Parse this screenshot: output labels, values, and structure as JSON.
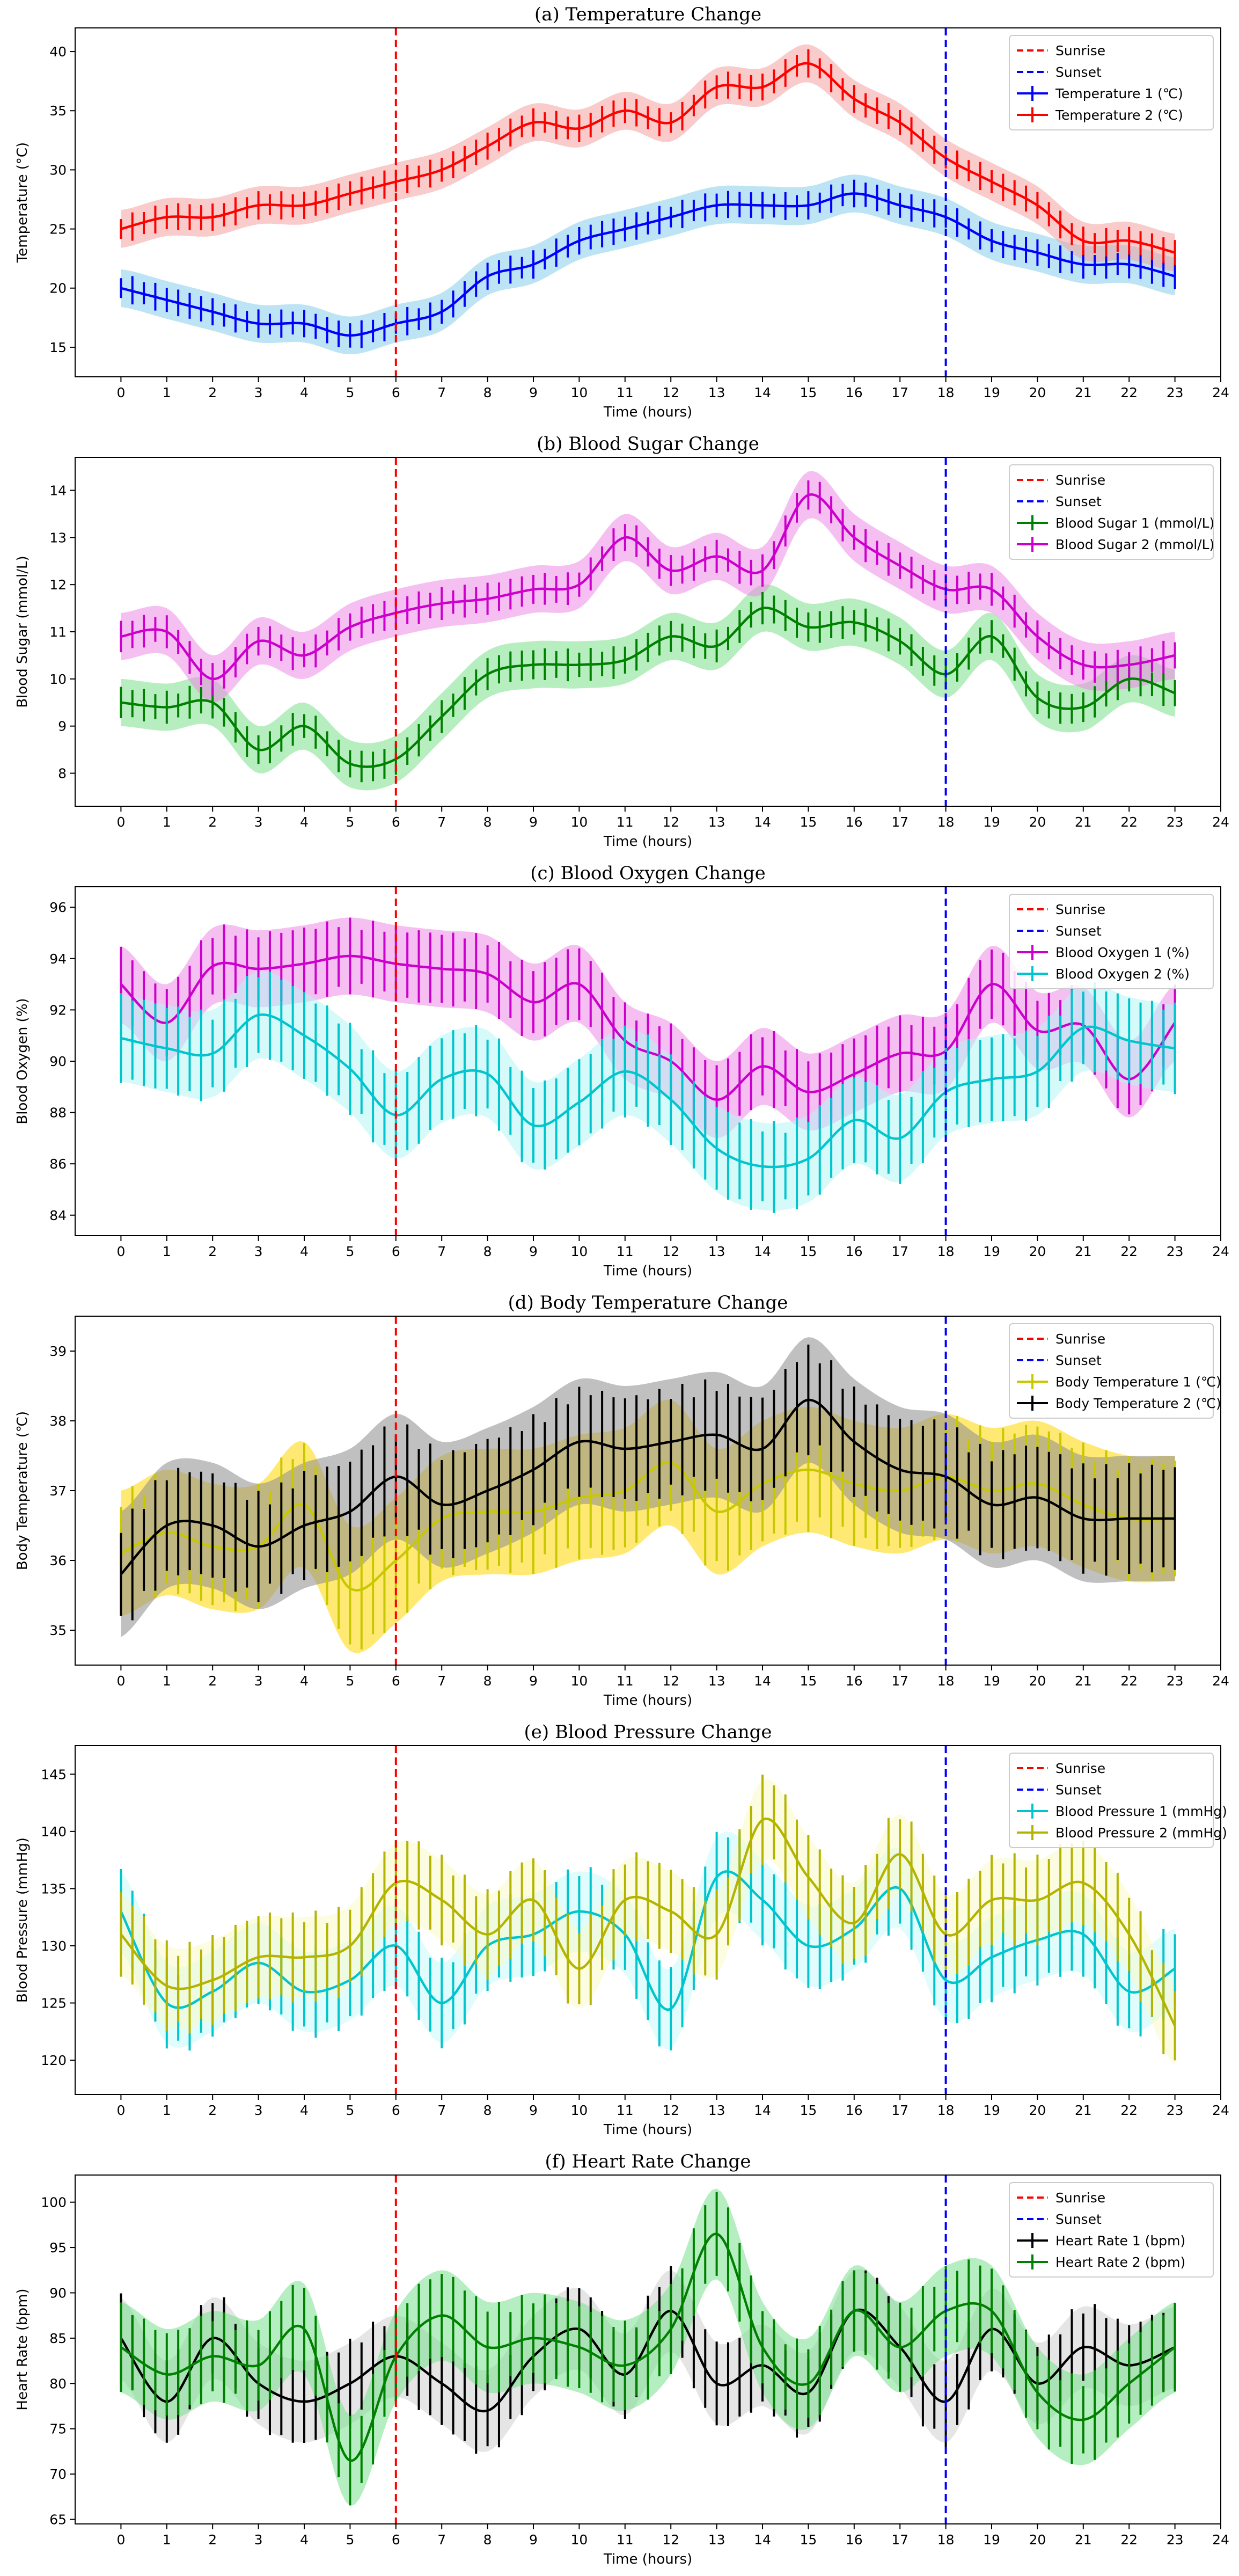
{
  "chart_data": [
    {
      "type": "line",
      "title": "(a) Temperature Change",
      "xlabel": "Time (hours)",
      "ylabel": "Temperature (°C)",
      "xlim": [
        -1,
        24
      ],
      "ylim": [
        12.5,
        42
      ],
      "xticks": [
        0,
        1,
        2,
        3,
        4,
        5,
        6,
        7,
        8,
        9,
        10,
        11,
        12,
        13,
        14,
        15,
        16,
        17,
        18,
        19,
        20,
        21,
        22,
        23,
        24
      ],
      "yticks": [
        15,
        20,
        25,
        30,
        35,
        40
      ],
      "legend_position": "top-right",
      "vlines": [
        {
          "name": "Sunrise",
          "x": 6,
          "color": "#ff0000"
        },
        {
          "name": "Sunset",
          "x": 18,
          "color": "#0000ff"
        }
      ],
      "series": [
        {
          "name": "Temperature 1 (℃)",
          "color": "#0000ff",
          "fill": "#87ceeb",
          "x": [
            0,
            1,
            2,
            3,
            4,
            5,
            6,
            7,
            8,
            9,
            10,
            11,
            12,
            13,
            14,
            15,
            16,
            17,
            18,
            19,
            20,
            21,
            22,
            23
          ],
          "values": [
            20,
            19,
            18,
            17,
            17,
            16,
            17,
            18,
            21,
            22,
            24,
            25,
            26,
            27,
            27,
            27,
            28,
            27,
            26,
            24,
            23,
            22,
            22,
            21
          ],
          "band": 1.6,
          "err": 1.2
        },
        {
          "name": "Temperature 2 (℃)",
          "color": "#ff0000",
          "fill": "#f4a0a0",
          "x": [
            0,
            1,
            2,
            3,
            4,
            5,
            6,
            7,
            8,
            9,
            10,
            11,
            12,
            13,
            14,
            15,
            16,
            17,
            18,
            19,
            20,
            21,
            22,
            23
          ],
          "values": [
            25,
            26,
            26,
            27,
            27,
            28,
            29,
            30,
            32,
            34,
            33.5,
            35,
            34,
            37,
            37,
            39,
            36,
            34,
            31,
            29,
            27,
            24,
            24,
            23
          ],
          "band": 1.6,
          "err": 1.2
        }
      ]
    },
    {
      "type": "line",
      "title": "(b) Blood Sugar Change",
      "xlabel": "Time (hours)",
      "ylabel": "Blood Sugar (mmol/L)",
      "xlim": [
        -1,
        24
      ],
      "ylim": [
        7.3,
        14.7
      ],
      "xticks": [
        0,
        1,
        2,
        3,
        4,
        5,
        6,
        7,
        8,
        9,
        10,
        11,
        12,
        13,
        14,
        15,
        16,
        17,
        18,
        19,
        20,
        21,
        22,
        23,
        24
      ],
      "yticks": [
        8,
        9,
        10,
        11,
        12,
        13,
        14
      ],
      "legend_position": "top-right",
      "vlines": [
        {
          "name": "Sunrise",
          "x": 6,
          "color": "#ff0000"
        },
        {
          "name": "Sunset",
          "x": 18,
          "color": "#0000ff"
        }
      ],
      "series": [
        {
          "name": "Blood Sugar 1 (mmol/L)",
          "color": "#008000",
          "fill": "#7ce08a",
          "x": [
            0,
            1,
            2,
            3,
            4,
            5,
            6,
            7,
            8,
            9,
            10,
            11,
            12,
            13,
            14,
            15,
            16,
            17,
            18,
            19,
            20,
            21,
            22,
            23
          ],
          "values": [
            9.5,
            9.4,
            9.5,
            8.5,
            9.0,
            8.2,
            8.3,
            9.2,
            10.1,
            10.3,
            10.3,
            10.4,
            10.9,
            10.7,
            11.5,
            11.1,
            11.2,
            10.8,
            10.1,
            10.9,
            9.6,
            9.4,
            10.0,
            9.7
          ],
          "band": 0.5,
          "err": 0.35
        },
        {
          "name": "Blood Sugar 2 (mmol/L)",
          "color": "#cc00cc",
          "fill": "#ee8be8",
          "x": [
            0,
            1,
            2,
            3,
            4,
            5,
            6,
            7,
            8,
            9,
            10,
            11,
            12,
            13,
            14,
            15,
            16,
            17,
            18,
            19,
            20,
            21,
            22,
            23
          ],
          "values": [
            10.9,
            11.0,
            10.0,
            10.8,
            10.5,
            11.1,
            11.4,
            11.6,
            11.7,
            11.9,
            12.0,
            13.0,
            12.3,
            12.6,
            12.3,
            13.9,
            13.0,
            12.4,
            11.9,
            11.9,
            10.9,
            10.3,
            10.3,
            10.5
          ],
          "band": 0.5,
          "err": 0.35
        }
      ]
    },
    {
      "type": "line",
      "title": "(c)  Blood Oxygen Change",
      "xlabel": "Time (hours)",
      "ylabel": "Blood Oxygen (%)",
      "xlim": [
        -1,
        24
      ],
      "ylim": [
        83.2,
        96.8
      ],
      "xticks": [
        0,
        1,
        2,
        3,
        4,
        5,
        6,
        7,
        8,
        9,
        10,
        11,
        12,
        13,
        14,
        15,
        16,
        17,
        18,
        19,
        20,
        21,
        22,
        23,
        24
      ],
      "yticks": [
        84,
        86,
        88,
        90,
        92,
        94,
        96
      ],
      "legend_position": "top-right",
      "vlines": [
        {
          "name": "Sunrise",
          "x": 6,
          "color": "#ff0000"
        },
        {
          "name": "Sunset",
          "x": 18,
          "color": "#0000ff"
        }
      ],
      "series": [
        {
          "name": "Blood Oxygen 1 (%)",
          "color": "#cc00cc",
          "fill": "#ee8be8",
          "x": [
            0,
            1,
            2,
            3,
            4,
            5,
            6,
            7,
            8,
            9,
            10,
            11,
            12,
            13,
            14,
            15,
            16,
            17,
            18,
            19,
            20,
            21,
            22,
            23
          ],
          "values": [
            93.0,
            91.5,
            93.7,
            93.6,
            93.8,
            94.1,
            93.8,
            93.6,
            93.4,
            92.3,
            93.0,
            90.8,
            90.0,
            88.5,
            89.8,
            88.8,
            89.5,
            90.3,
            90.4,
            93.0,
            91.2,
            91.4,
            89.3,
            91.5
          ],
          "band": 1.5,
          "err": 1.5
        },
        {
          "name": "Blood Oxygen 2 (%)",
          "color": "#00c5cd",
          "fill": "#b4f4f4",
          "x": [
            0,
            1,
            2,
            3,
            4,
            5,
            6,
            7,
            8,
            9,
            10,
            11,
            12,
            13,
            14,
            15,
            16,
            17,
            18,
            19,
            20,
            21,
            22,
            23
          ],
          "values": [
            90.9,
            90.5,
            90.3,
            91.8,
            91.0,
            89.7,
            87.9,
            89.3,
            89.5,
            87.5,
            88.4,
            89.6,
            88.5,
            86.6,
            85.9,
            86.2,
            87.7,
            87.0,
            88.8,
            89.3,
            89.6,
            91.3,
            90.8,
            90.5
          ],
          "band": 1.7,
          "err": 1.8
        }
      ]
    },
    {
      "type": "line",
      "title": "(d)  Body Temperature Change",
      "xlabel": "Time (hours)",
      "ylabel": "Body Temperature (℃)",
      "xlim": [
        -1,
        24
      ],
      "ylim": [
        34.5,
        39.5
      ],
      "xticks": [
        0,
        1,
        2,
        3,
        4,
        5,
        6,
        7,
        8,
        9,
        10,
        11,
        12,
        13,
        14,
        15,
        16,
        17,
        18,
        19,
        20,
        21,
        22,
        23,
        24
      ],
      "yticks": [
        35,
        36,
        37,
        38,
        39
      ],
      "legend_position": "top-right",
      "vlines": [
        {
          "name": "Sunrise",
          "x": 6,
          "color": "#ff0000"
        },
        {
          "name": "Sunset",
          "x": 18,
          "color": "#0000ff"
        }
      ],
      "series": [
        {
          "name": "Body Temperature 1 (℃)",
          "color": "#c8c800",
          "fill": "#ffd700",
          "x": [
            0,
            1,
            2,
            3,
            4,
            5,
            6,
            7,
            8,
            9,
            10,
            11,
            12,
            13,
            14,
            15,
            16,
            17,
            18,
            19,
            20,
            21,
            22,
            23
          ],
          "values": [
            36.1,
            36.4,
            36.2,
            36.2,
            36.8,
            35.6,
            36.0,
            36.6,
            36.7,
            36.7,
            36.9,
            37.0,
            37.4,
            36.7,
            37.1,
            37.3,
            37.1,
            37.0,
            37.2,
            37.0,
            37.1,
            36.8,
            36.6,
            36.6
          ],
          "band": 0.9,
          "err": 0.9
        },
        {
          "name": "Body Temperature 2 (℃)",
          "color": "#000000",
          "fill": "#8c8c8c",
          "x": [
            0,
            1,
            2,
            3,
            4,
            5,
            6,
            7,
            8,
            9,
            10,
            11,
            12,
            13,
            14,
            15,
            16,
            17,
            18,
            19,
            20,
            21,
            22,
            23
          ],
          "values": [
            35.8,
            36.5,
            36.5,
            36.2,
            36.5,
            36.7,
            37.2,
            36.8,
            37.0,
            37.3,
            37.7,
            37.6,
            37.7,
            37.8,
            37.6,
            38.3,
            37.7,
            37.3,
            37.2,
            36.8,
            36.9,
            36.6,
            36.6,
            36.6
          ],
          "band": 0.9,
          "err": 0.8
        }
      ]
    },
    {
      "type": "line",
      "title": "(e)                    Blood Pressure Change",
      "xlabel": "Time (hours)",
      "ylabel": "Blood Pressure (mmHg)",
      "xlim": [
        -1,
        24
      ],
      "ylim": [
        117,
        147.5
      ],
      "xticks": [
        0,
        1,
        2,
        3,
        4,
        5,
        6,
        7,
        8,
        9,
        10,
        11,
        12,
        13,
        14,
        15,
        16,
        17,
        18,
        19,
        20,
        21,
        22,
        23,
        24
      ],
      "yticks": [
        120,
        125,
        130,
        135,
        140,
        145
      ],
      "legend_position": "top-right",
      "vlines": [
        {
          "name": "Sunrise",
          "x": 6,
          "color": "#ff0000"
        },
        {
          "name": "Sunset",
          "x": 18,
          "color": "#0000ff"
        }
      ],
      "series": [
        {
          "name": "Blood Pressure 1 (mmHg)",
          "color": "#00c5cd",
          "fill": "#c8fafa",
          "x": [
            0,
            1,
            2,
            3,
            4,
            5,
            6,
            7,
            8,
            9,
            10,
            11,
            12,
            13,
            14,
            15,
            16,
            17,
            18,
            19,
            20,
            21,
            22,
            23
          ],
          "values": [
            133,
            125,
            126,
            128.5,
            126,
            127,
            130,
            125,
            130,
            131,
            133,
            131,
            124.5,
            136,
            134,
            130,
            131.5,
            135,
            127,
            129,
            130.5,
            131,
            126,
            128
          ],
          "band": 3.5,
          "err": 4
        },
        {
          "name": "Blood Pressure 2 (mmHg)",
          "color": "#b4b400",
          "fill": "#fafac8",
          "x": [
            0,
            1,
            2,
            3,
            4,
            5,
            6,
            7,
            8,
            9,
            10,
            11,
            12,
            13,
            14,
            15,
            16,
            17,
            18,
            19,
            20,
            21,
            22,
            23
          ],
          "values": [
            131,
            126.5,
            127,
            129,
            129,
            130,
            135.5,
            134,
            131,
            134,
            128,
            134,
            133,
            131,
            141,
            136,
            132,
            138,
            131,
            134,
            134,
            135.5,
            131,
            123
          ],
          "band": 3.5,
          "err": 4
        }
      ]
    },
    {
      "type": "line",
      "title": "(f)                Heart Rate Change",
      "xlabel": "Time (hours)",
      "ylabel": "Heart Rate (bpm)",
      "xlim": [
        -1,
        24
      ],
      "ylim": [
        64.5,
        103
      ],
      "xticks": [
        0,
        1,
        2,
        3,
        4,
        5,
        6,
        7,
        8,
        9,
        10,
        11,
        12,
        13,
        14,
        15,
        16,
        17,
        18,
        19,
        20,
        21,
        22,
        23,
        24
      ],
      "yticks": [
        65,
        70,
        75,
        80,
        85,
        90,
        95,
        100
      ],
      "legend_position": "top-right",
      "vlines": [
        {
          "name": "Sunrise",
          "x": 6,
          "color": "#ff0000"
        },
        {
          "name": "Sunset",
          "x": 18,
          "color": "#0000ff"
        }
      ],
      "series": [
        {
          "name": "Heart Rate 1 (bpm)",
          "color": "#000000",
          "fill": "#cfcfcf",
          "x": [
            0,
            1,
            2,
            3,
            4,
            5,
            6,
            7,
            8,
            9,
            10,
            11,
            12,
            13,
            14,
            15,
            16,
            17,
            18,
            19,
            20,
            21,
            22,
            23
          ],
          "values": [
            85,
            78,
            85,
            80,
            78,
            80,
            83,
            80,
            77,
            83,
            86,
            81,
            88,
            80,
            82,
            79,
            88,
            84,
            78,
            86,
            80,
            84,
            82,
            84
          ],
          "band": 4.5,
          "err": 5
        },
        {
          "name": "Heart Rate 2 (bpm)",
          "color": "#008000",
          "fill": "#78e08c",
          "x": [
            0,
            1,
            2,
            3,
            4,
            5,
            6,
            7,
            8,
            9,
            10,
            11,
            12,
            13,
            14,
            15,
            16,
            17,
            18,
            19,
            20,
            21,
            22,
            23
          ],
          "values": [
            84,
            81,
            83,
            82,
            86,
            71.5,
            83,
            87.5,
            84,
            85,
            84,
            82,
            86,
            96.5,
            84,
            80,
            88,
            84,
            88,
            88,
            79,
            76,
            80,
            84
          ],
          "band": 5,
          "err": 5
        }
      ]
    }
  ]
}
